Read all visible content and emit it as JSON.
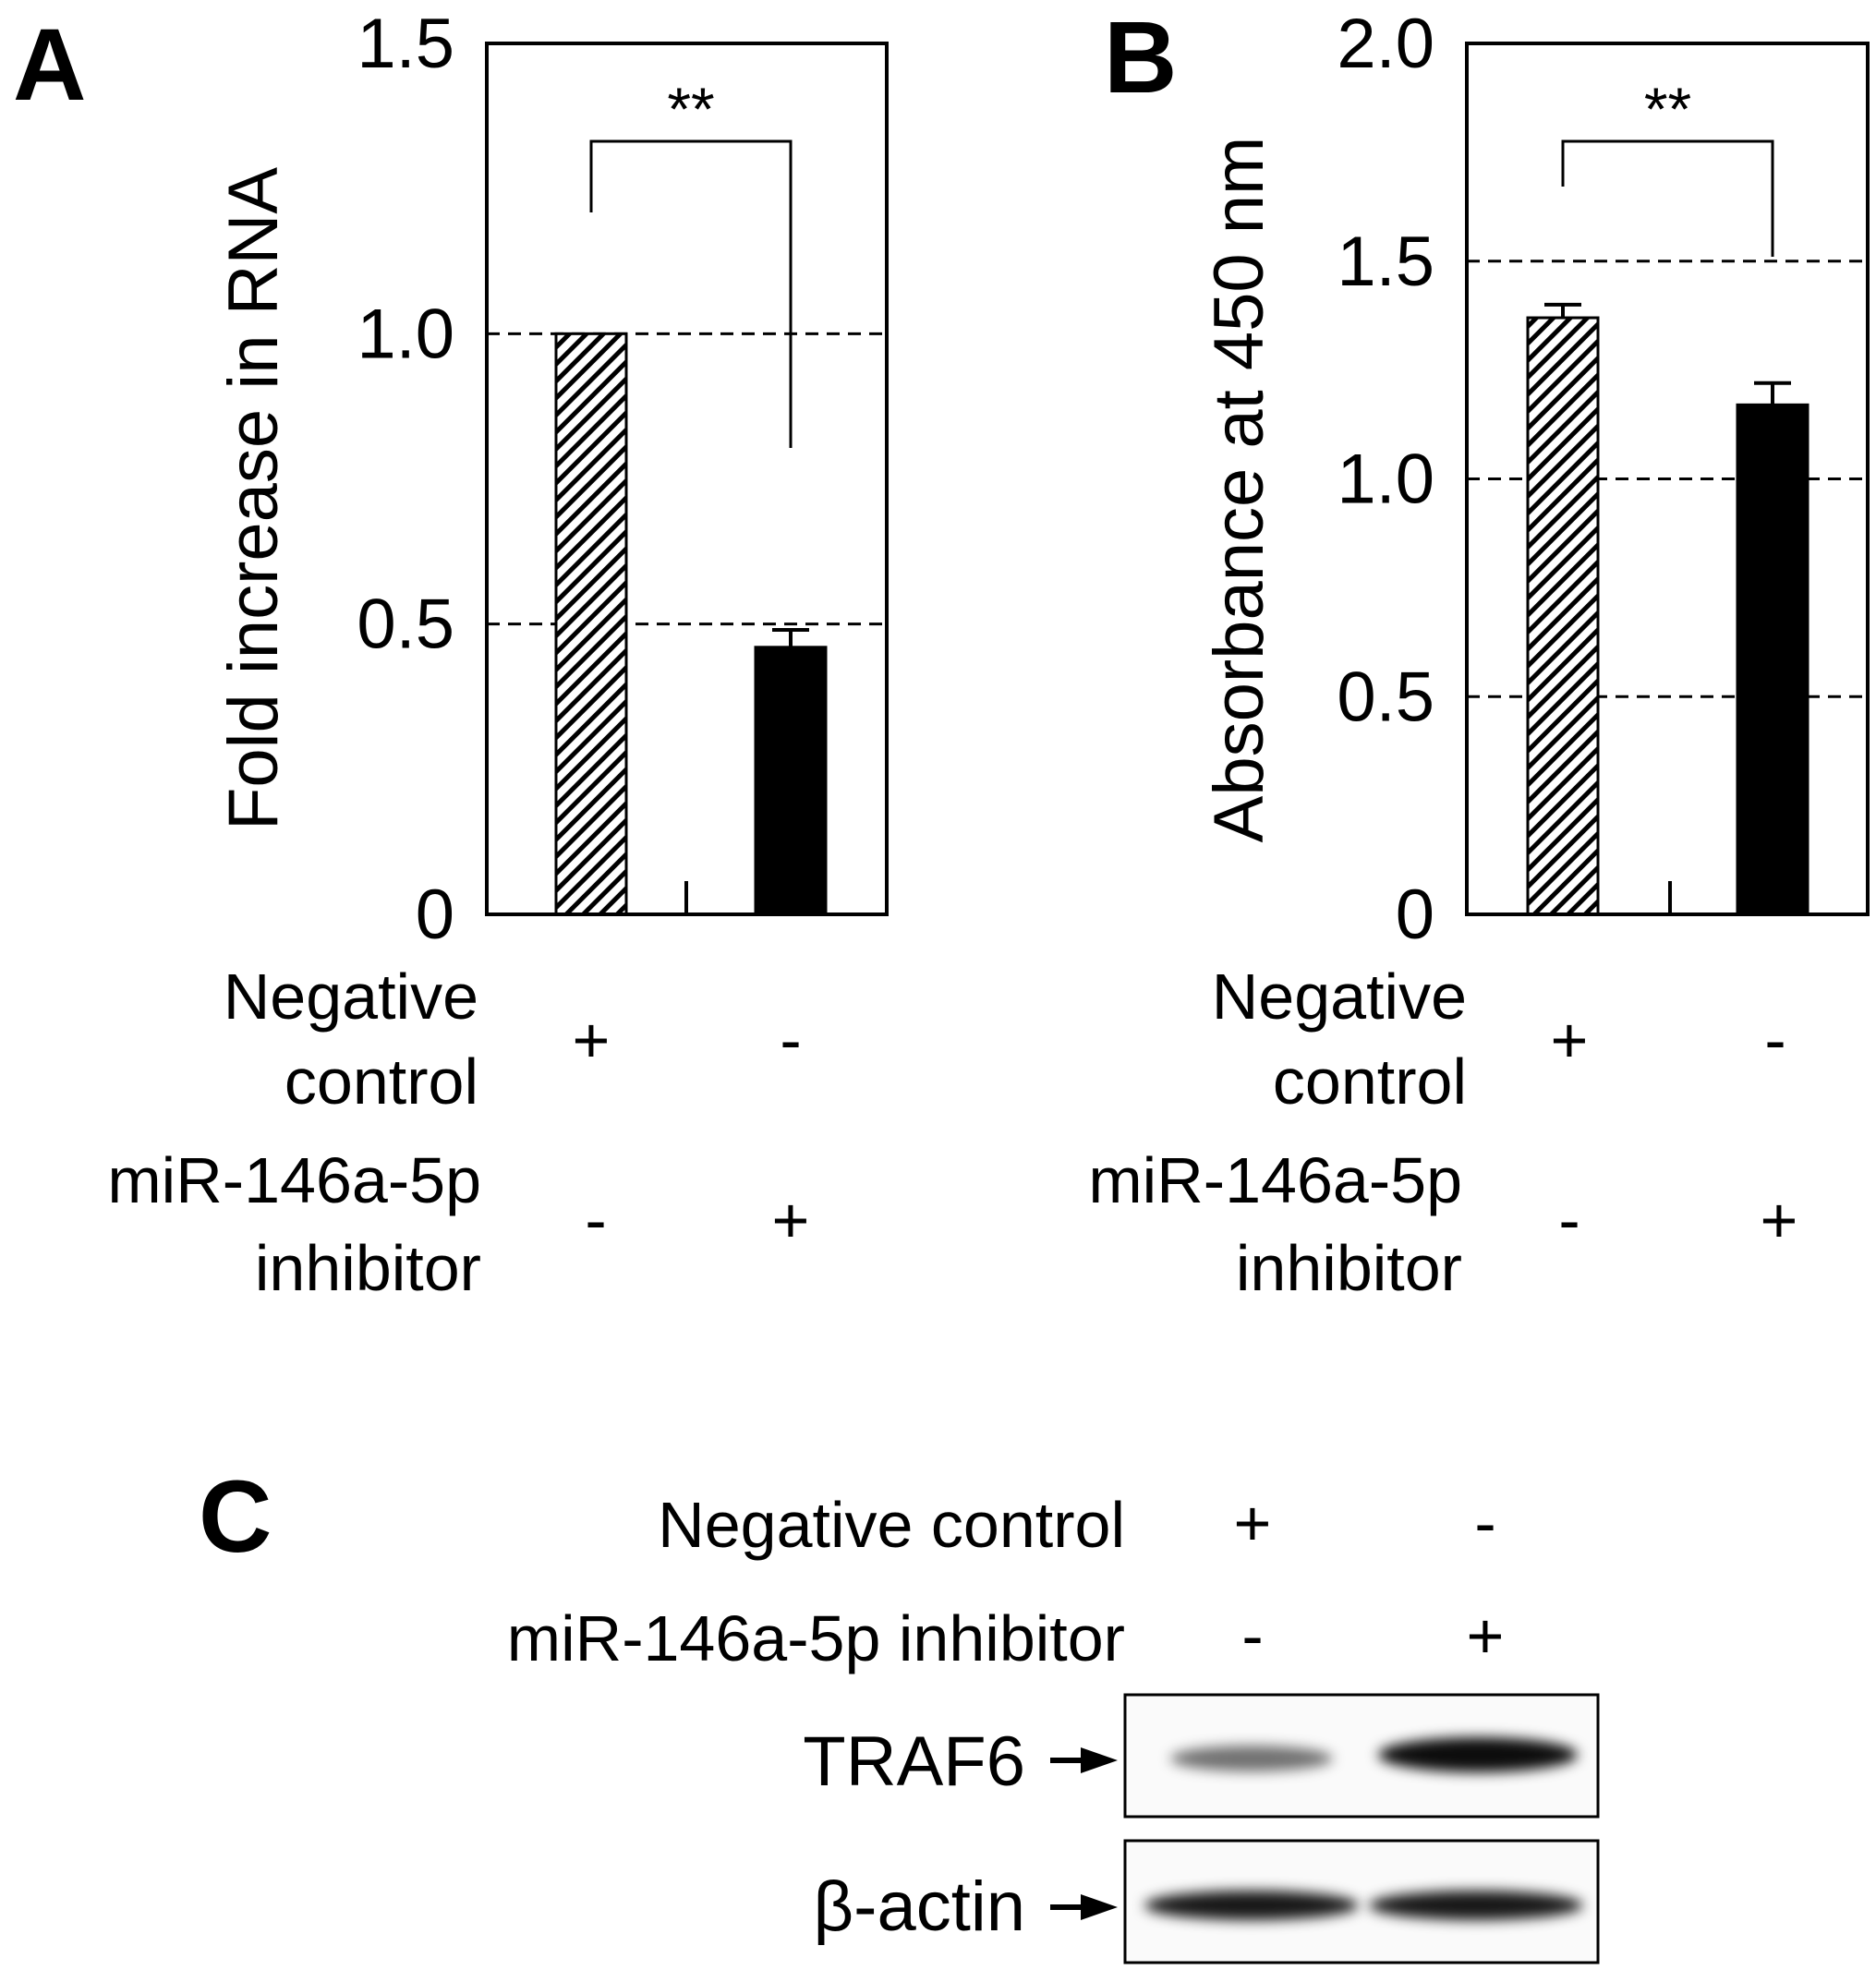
{
  "panels": {
    "A": {
      "letter": "A",
      "rows": [
        {
          "label_lines": [
            "Negative",
            "control"
          ],
          "marks": [
            "+",
            "-"
          ]
        },
        {
          "label_lines": [
            "miR-146a-5p",
            "inhibitor"
          ],
          "marks": [
            "-",
            "+"
          ]
        }
      ]
    },
    "B": {
      "letter": "B",
      "rows": [
        {
          "label_lines": [
            "Negative",
            "control"
          ],
          "marks": [
            "+",
            "-"
          ]
        },
        {
          "label_lines": [
            "miR-146a-5p",
            "inhibitor"
          ],
          "marks": [
            "-",
            "+"
          ]
        }
      ]
    },
    "C": {
      "letter": "C",
      "rows": [
        {
          "label": "Negative control",
          "marks": [
            "+",
            "-"
          ]
        },
        {
          "label": "miR-146a-5p inhibitor",
          "marks": [
            "-",
            "+"
          ]
        }
      ],
      "blots": [
        {
          "label": "TRAF6",
          "band_intensity": [
            0.55,
            0.95
          ]
        },
        {
          "label": "β-actin",
          "band_intensity": [
            0.9,
            0.9
          ]
        }
      ]
    }
  },
  "chart_data": [
    {
      "panel": "A",
      "type": "bar",
      "ylabel": "Fold increase in RNA",
      "ylim": [
        0,
        1.5
      ],
      "yticks": [
        0,
        0.5,
        1.0,
        1.5
      ],
      "ytick_labels": [
        "0",
        "0.5",
        "1.0",
        "1.5"
      ],
      "gridlines": [
        0.5,
        1.0
      ],
      "bars": [
        {
          "value": 1.0,
          "error": 0,
          "fill": "hatched"
        },
        {
          "value": 0.46,
          "error": 0.03,
          "fill": "solid"
        }
      ],
      "significance": {
        "text": "**",
        "between": [
          0,
          1
        ]
      }
    },
    {
      "panel": "B",
      "type": "bar",
      "ylabel": "Absorbance at 450 nm",
      "ylim": [
        0,
        2.0
      ],
      "yticks": [
        0,
        0.5,
        1.0,
        1.5,
        2.0
      ],
      "ytick_labels": [
        "0",
        "0.5",
        "1.0",
        "1.5",
        "2.0"
      ],
      "gridlines": [
        0.5,
        1.0,
        1.5
      ],
      "bars": [
        {
          "value": 1.37,
          "error": 0.03,
          "fill": "hatched"
        },
        {
          "value": 1.17,
          "error": 0.05,
          "fill": "solid"
        }
      ],
      "significance": {
        "text": "**",
        "between": [
          0,
          1
        ]
      }
    }
  ]
}
